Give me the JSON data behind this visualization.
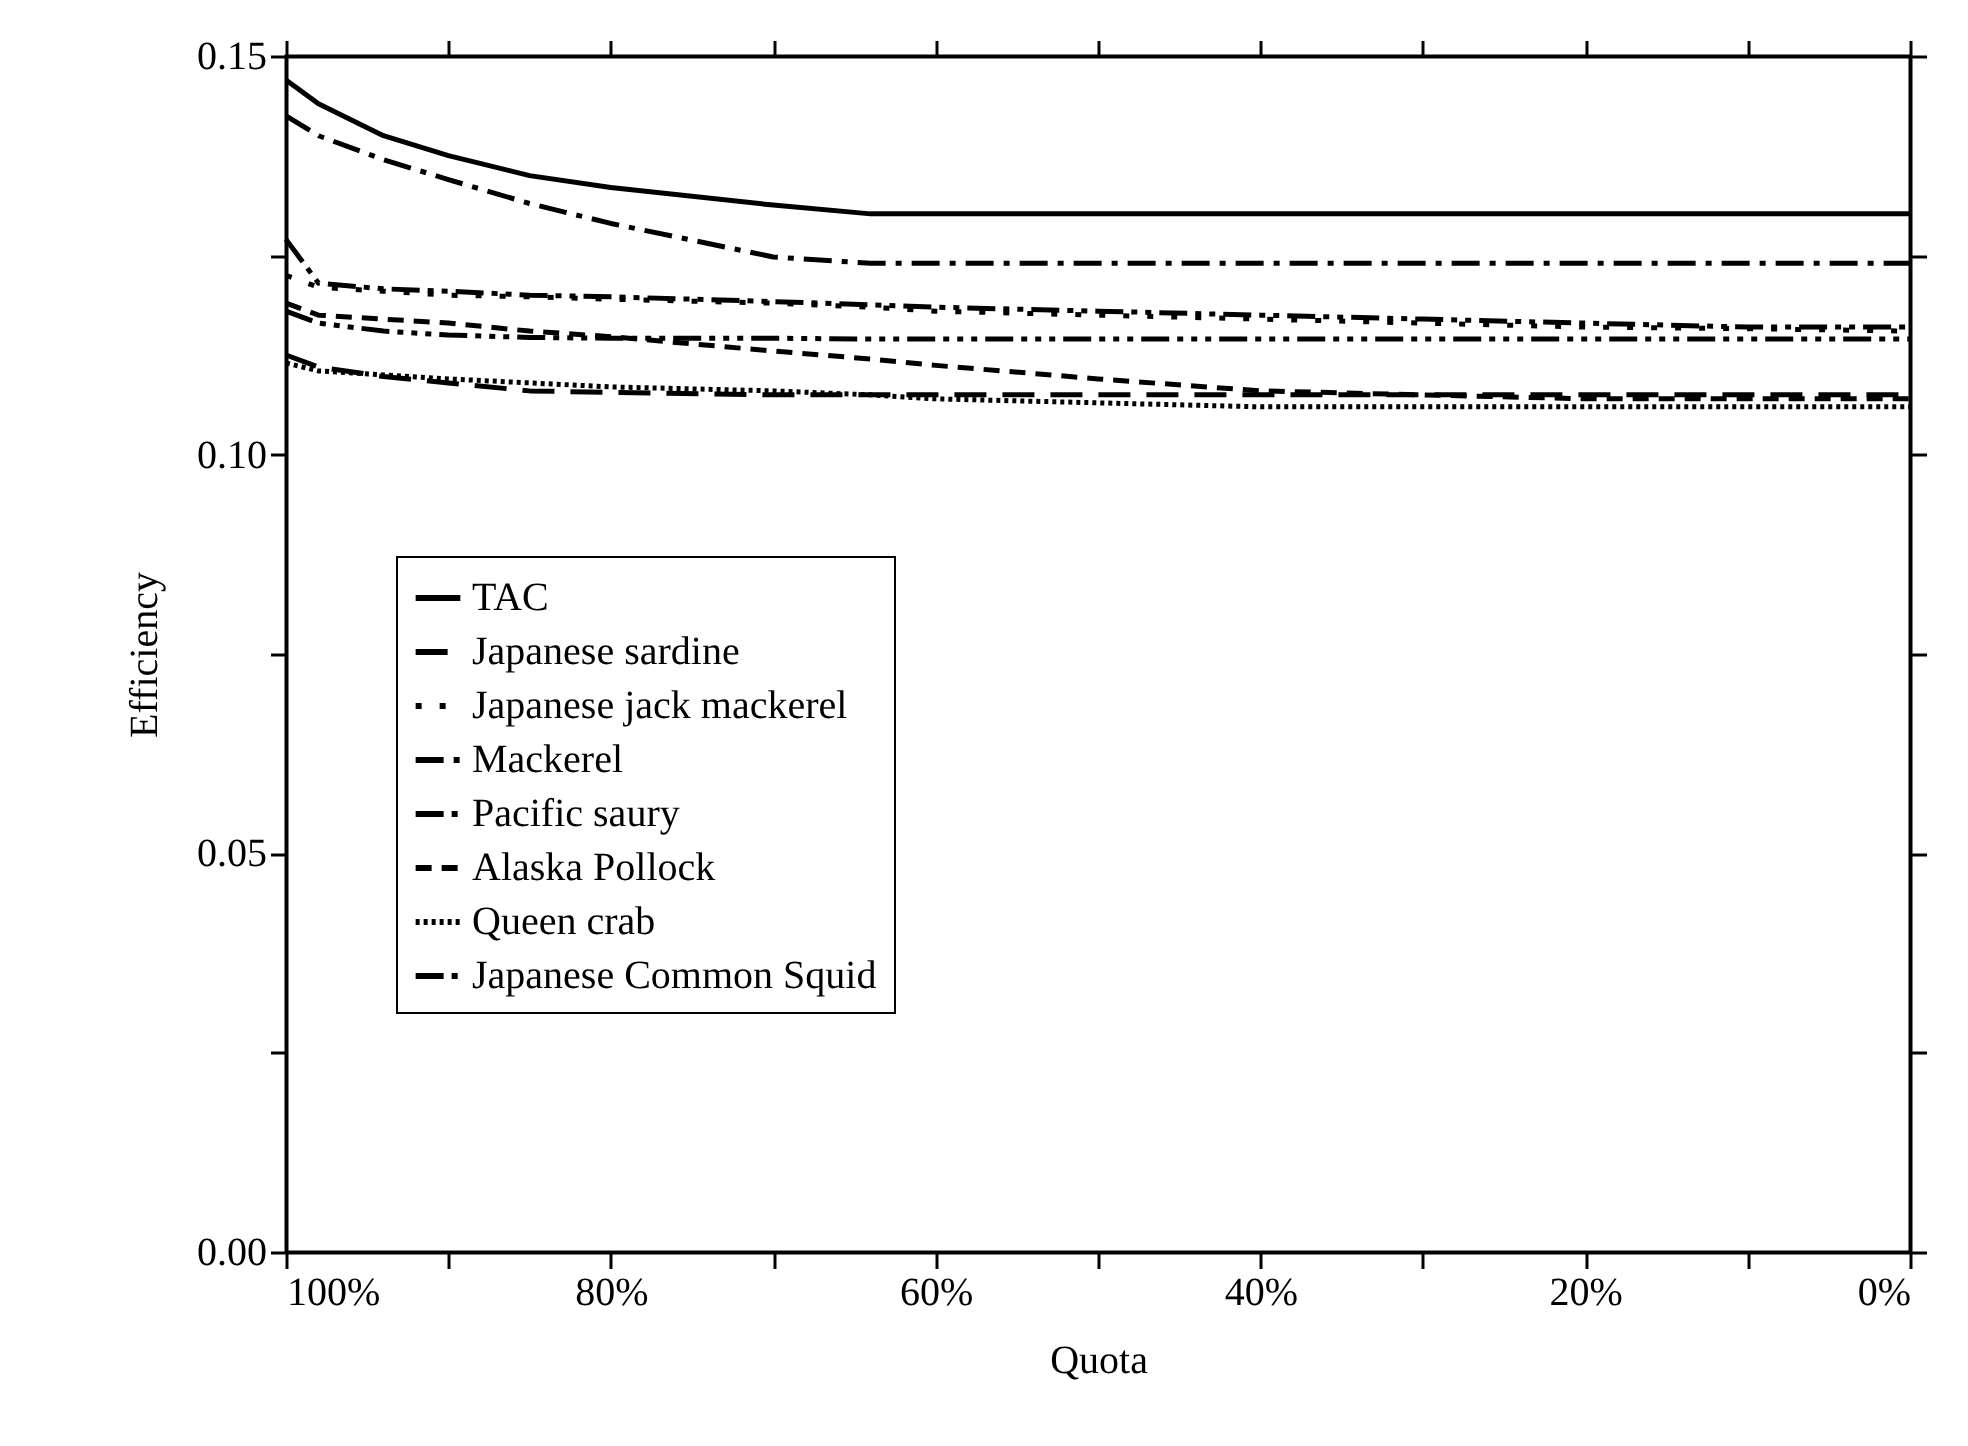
{
  "chart_data": {
    "type": "line",
    "xlabel": "Quota",
    "ylabel": "Efficiency",
    "x": [
      100,
      98,
      94,
      90,
      85,
      80,
      70,
      64,
      60,
      50,
      40,
      30,
      20,
      10,
      0
    ],
    "xlim": [
      100,
      0
    ],
    "xticks": [
      {
        "value": 100,
        "label": "100%"
      },
      {
        "value": 90,
        "label": null
      },
      {
        "value": 80,
        "label": "80%"
      },
      {
        "value": 70,
        "label": null
      },
      {
        "value": 60,
        "label": "60%"
      },
      {
        "value": 50,
        "label": null
      },
      {
        "value": 40,
        "label": "40%"
      },
      {
        "value": 30,
        "label": null
      },
      {
        "value": 20,
        "label": "20%"
      },
      {
        "value": 10,
        "label": null
      },
      {
        "value": 0,
        "label": "0%"
      }
    ],
    "ylim": [
      0,
      0.15
    ],
    "yticks": [
      {
        "value": 0,
        "label": "0.00"
      },
      {
        "value": 0.025,
        "label": null
      },
      {
        "value": 0.05,
        "label": "0.05"
      },
      {
        "value": 0.075,
        "label": null
      },
      {
        "value": 0.1,
        "label": "0.10"
      },
      {
        "value": 0.125,
        "label": null
      },
      {
        "value": 0.15,
        "label": "0.15"
      }
    ],
    "grid": false,
    "legend": "bottom left",
    "marker": "none",
    "series": [
      {
        "name": "TAC",
        "color": "#000000",
        "line_style": "solid",
        "values": [
          0.147,
          0.144,
          0.14,
          0.1375,
          0.135,
          0.1335,
          0.1313,
          0.1302,
          0.1302,
          0.1302,
          0.1302,
          0.1302,
          0.1302,
          0.1302,
          0.1302
        ]
      },
      {
        "name": "Japanese sardine",
        "color": "#000000",
        "line_style": "longdash",
        "values": [
          0.1125,
          0.111,
          0.1098,
          0.109,
          0.108,
          0.1078,
          0.1075,
          0.1075,
          0.1075,
          0.1075,
          0.1075,
          0.1075,
          0.1075,
          0.1075,
          0.1075
        ]
      },
      {
        "name": "Japanese jack mackerel",
        "color": "#000000",
        "line_style": "sparsedot",
        "values": [
          0.1225,
          0.121,
          0.1205,
          0.12,
          0.1198,
          0.1195,
          0.119,
          0.1185,
          0.118,
          0.1175,
          0.117,
          0.1165,
          0.116,
          0.1158,
          0.1155
        ]
      },
      {
        "name": "Mackerel",
        "color": "#000000",
        "line_style": "dashdot",
        "values": [
          0.1425,
          0.14,
          0.137,
          0.1345,
          0.1315,
          0.129,
          0.1248,
          0.124,
          0.124,
          0.124,
          0.124,
          0.124,
          0.124,
          0.124,
          0.124
        ]
      },
      {
        "name": "Pacific saury",
        "color": "#000000",
        "line_style": "dashdotdotdot",
        "values": [
          0.118,
          0.1165,
          0.1155,
          0.115,
          0.1147,
          0.1146,
          0.1146,
          0.1145,
          0.1145,
          0.1145,
          0.1145,
          0.1145,
          0.1145,
          0.1145,
          0.1145
        ]
      },
      {
        "name": "Alaska Pollock",
        "color": "#000000",
        "line_style": "dashed",
        "values": [
          0.119,
          0.1175,
          0.117,
          0.1165,
          0.1155,
          0.1148,
          0.113,
          0.112,
          0.1112,
          0.1095,
          0.108,
          0.1075,
          0.107,
          0.107,
          0.107
        ]
      },
      {
        "name": "Queen crab",
        "color": "#000000",
        "line_style": "dotted",
        "values": [
          0.1115,
          0.1105,
          0.11,
          0.1095,
          0.109,
          0.1085,
          0.108,
          0.1075,
          0.107,
          0.1065,
          0.106,
          0.106,
          0.106,
          0.106,
          0.106
        ]
      },
      {
        "name": "Japanese Common Squid",
        "color": "#000000",
        "line_style": "dashdotdot",
        "values": [
          0.127,
          0.1215,
          0.1208,
          0.1205,
          0.12,
          0.1198,
          0.1192,
          0.1188,
          0.1185,
          0.118,
          0.1175,
          0.117,
          0.1165,
          0.116,
          0.116
        ]
      }
    ]
  }
}
